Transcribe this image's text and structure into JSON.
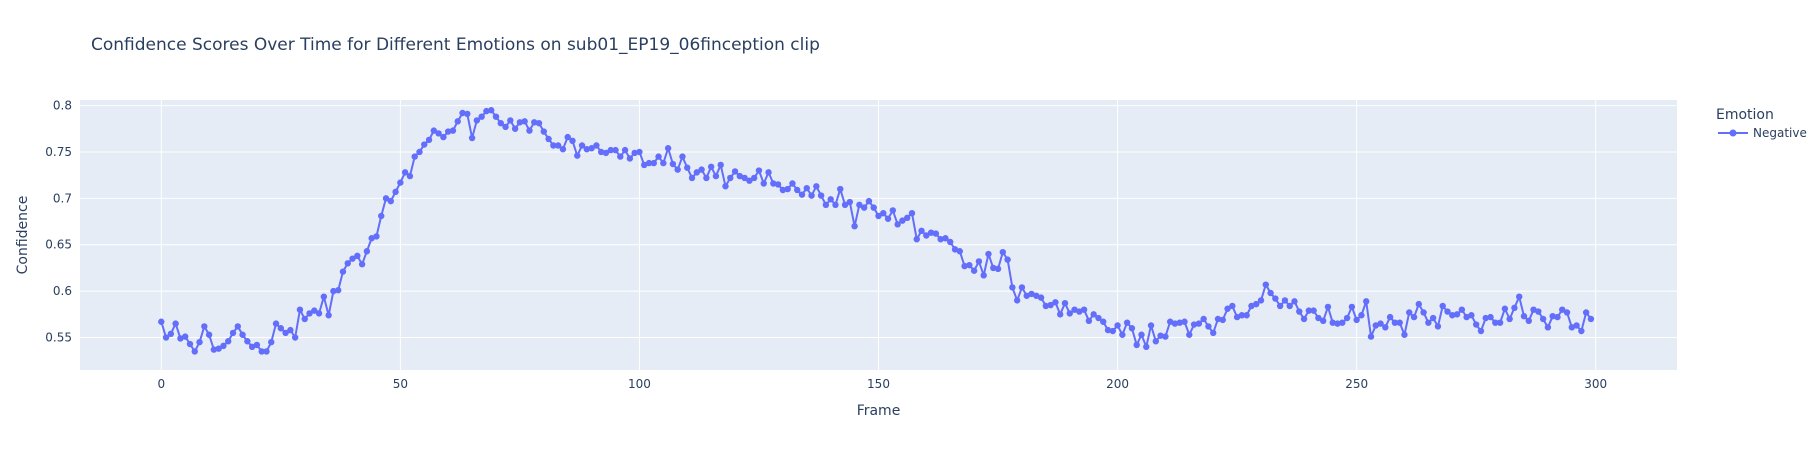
{
  "chart_data": {
    "type": "line",
    "title": "Confidence Scores Over Time for Different Emotions on sub01_EP19_06finception clip",
    "xlabel": "Frame",
    "ylabel": "Confidence",
    "xlim": [
      -17,
      317
    ],
    "ylim": [
      0.515,
      0.806
    ],
    "xticks": [
      0,
      50,
      100,
      150,
      200,
      250,
      300
    ],
    "yticks": [
      0.55,
      0.6,
      0.65,
      0.7,
      0.75,
      0.8
    ],
    "ytick_labels": [
      "0.55",
      "0.6",
      "0.65",
      "0.7",
      "0.75",
      "0.8"
    ],
    "grid": true,
    "legend_title": "Emotion",
    "legend_position": "right",
    "colors": {
      "plot_bg": "#E5ECF6",
      "grid": "#FFFFFF",
      "series": "#636EFA"
    },
    "series": [
      {
        "name": "Negative",
        "mode": "lines+markers",
        "x_start": 0,
        "x_step": 1,
        "values": [
          0.567,
          0.55,
          0.554,
          0.565,
          0.549,
          0.551,
          0.543,
          0.535,
          0.545,
          0.562,
          0.553,
          0.537,
          0.538,
          0.541,
          0.546,
          0.555,
          0.562,
          0.553,
          0.546,
          0.54,
          0.542,
          0.535,
          0.535,
          0.545,
          0.565,
          0.56,
          0.555,
          0.558,
          0.55,
          0.58,
          0.57,
          0.576,
          0.579,
          0.576,
          0.594,
          0.574,
          0.6,
          0.601,
          0.621,
          0.63,
          0.635,
          0.638,
          0.629,
          0.643,
          0.657,
          0.659,
          0.681,
          0.7,
          0.697,
          0.707,
          0.717,
          0.728,
          0.724,
          0.745,
          0.75,
          0.758,
          0.763,
          0.773,
          0.77,
          0.766,
          0.772,
          0.773,
          0.783,
          0.792,
          0.791,
          0.765,
          0.784,
          0.788,
          0.794,
          0.795,
          0.788,
          0.781,
          0.777,
          0.784,
          0.775,
          0.782,
          0.783,
          0.773,
          0.782,
          0.781,
          0.772,
          0.764,
          0.757,
          0.757,
          0.753,
          0.766,
          0.762,
          0.746,
          0.757,
          0.753,
          0.754,
          0.757,
          0.75,
          0.749,
          0.752,
          0.752,
          0.745,
          0.752,
          0.743,
          0.749,
          0.75,
          0.736,
          0.738,
          0.738,
          0.745,
          0.738,
          0.754,
          0.737,
          0.731,
          0.745,
          0.733,
          0.722,
          0.728,
          0.731,
          0.722,
          0.734,
          0.724,
          0.736,
          0.713,
          0.722,
          0.729,
          0.724,
          0.722,
          0.719,
          0.722,
          0.73,
          0.716,
          0.728,
          0.716,
          0.715,
          0.709,
          0.71,
          0.716,
          0.709,
          0.704,
          0.711,
          0.703,
          0.713,
          0.703,
          0.693,
          0.699,
          0.693,
          0.71,
          0.693,
          0.696,
          0.67,
          0.693,
          0.69,
          0.697,
          0.69,
          0.681,
          0.684,
          0.678,
          0.687,
          0.672,
          0.676,
          0.679,
          0.684,
          0.656,
          0.665,
          0.66,
          0.663,
          0.662,
          0.656,
          0.657,
          0.653,
          0.645,
          0.643,
          0.627,
          0.628,
          0.622,
          0.632,
          0.617,
          0.64,
          0.625,
          0.624,
          0.642,
          0.634,
          0.604,
          0.59,
          0.604,
          0.595,
          0.597,
          0.595,
          0.593,
          0.584,
          0.585,
          0.588,
          0.575,
          0.587,
          0.576,
          0.58,
          0.578,
          0.58,
          0.568,
          0.575,
          0.571,
          0.567,
          0.558,
          0.557,
          0.563,
          0.553,
          0.566,
          0.56,
          0.542,
          0.553,
          0.54,
          0.563,
          0.546,
          0.552,
          0.551,
          0.567,
          0.565,
          0.566,
          0.567,
          0.553,
          0.564,
          0.565,
          0.57,
          0.562,
          0.555,
          0.57,
          0.569,
          0.581,
          0.584,
          0.572,
          0.574,
          0.574,
          0.584,
          0.586,
          0.59,
          0.607,
          0.598,
          0.592,
          0.584,
          0.59,
          0.584,
          0.589,
          0.578,
          0.57,
          0.579,
          0.579,
          0.571,
          0.568,
          0.583,
          0.566,
          0.565,
          0.566,
          0.571,
          0.583,
          0.569,
          0.574,
          0.589,
          0.551,
          0.563,
          0.565,
          0.561,
          0.572,
          0.566,
          0.566,
          0.553,
          0.577,
          0.572,
          0.586,
          0.577,
          0.566,
          0.571,
          0.562,
          0.584,
          0.578,
          0.574,
          0.575,
          0.58,
          0.572,
          0.574,
          0.564,
          0.557,
          0.571,
          0.572,
          0.566,
          0.566,
          0.581,
          0.57,
          0.582,
          0.594,
          0.573,
          0.568,
          0.58,
          0.578,
          0.57,
          0.561,
          0.573,
          0.572,
          0.58,
          0.577,
          0.561,
          0.563,
          0.557,
          0.577,
          0.57
        ]
      }
    ]
  }
}
